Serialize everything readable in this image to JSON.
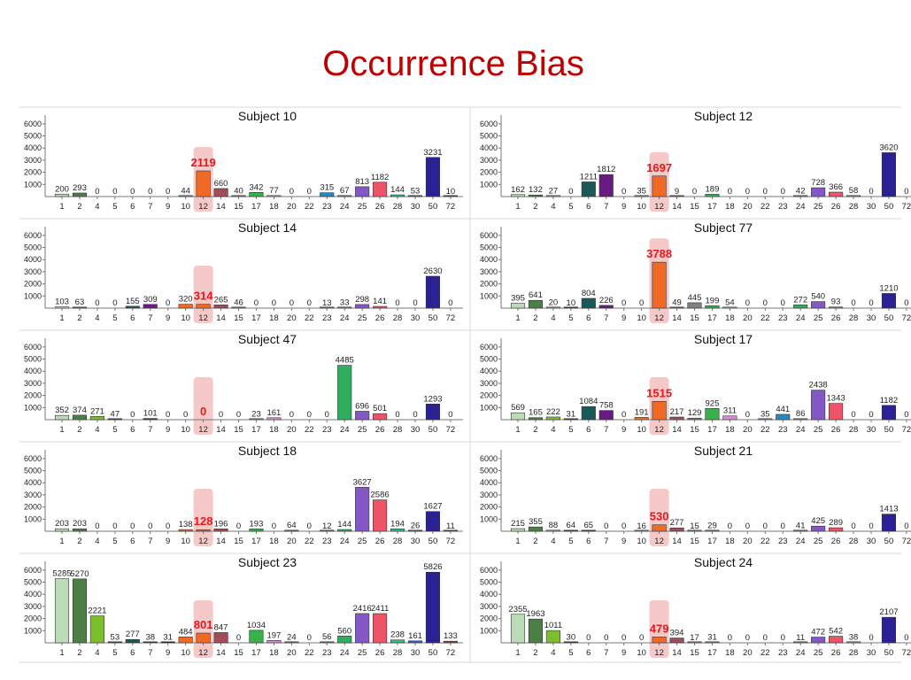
{
  "slide_title": "Occurrence Bias",
  "colors": {
    "title": "#c00000",
    "highlight_band": "#f6c9c9",
    "highlight_value": "#e8171c",
    "bars": {
      "1": "#bcdcb6",
      "2": "#4c7f46",
      "4": "#7cbf2c",
      "5": "#264f49",
      "6": "#195a59",
      "7": "#6a1a83",
      "9": "#222222",
      "10": "#f06a26",
      "12": "#f06a26",
      "14": "#a34b56",
      "15": "#7f7f7f",
      "17": "#39b04a",
      "18": "#cf8fcf",
      "20": "#7f5aa8",
      "22": "#8c7aa8",
      "23": "#2f86b9",
      "24": "#2fae5e",
      "25": "#8457c6",
      "26": "#ee5368",
      "28": "#2bbf8a",
      "30": "#3b5fbd",
      "50": "#2a2194",
      "72": "#8a4040"
    }
  },
  "chart_data": [
    {
      "type": "bar",
      "title": "Subject 10",
      "categories": [
        "1",
        "2",
        "4",
        "5",
        "6",
        "7",
        "9",
        "10",
        "12",
        "14",
        "15",
        "17",
        "18",
        "20",
        "22",
        "23",
        "24",
        "25",
        "26",
        "28",
        "30",
        "50",
        "72"
      ],
      "values": [
        200,
        293,
        0,
        0,
        0,
        0,
        0,
        44,
        2119,
        660,
        40,
        342,
        77,
        0,
        0,
        315,
        67,
        813,
        1182,
        144,
        53,
        3231,
        10
      ],
      "highlight_category": "12",
      "yticks": [
        1000,
        2000,
        3000,
        4000,
        5000,
        6000
      ],
      "ylim": [
        0,
        6500
      ]
    },
    {
      "type": "bar",
      "title": "Subject 12",
      "categories": [
        "1",
        "2",
        "4",
        "5",
        "6",
        "7",
        "9",
        "10",
        "12",
        "14",
        "15",
        "17",
        "18",
        "20",
        "22",
        "23",
        "24",
        "25",
        "26",
        "28",
        "30",
        "50",
        "72"
      ],
      "values": [
        162,
        132,
        27,
        0,
        1211,
        1812,
        0,
        35,
        1697,
        9,
        0,
        189,
        0,
        0,
        0,
        0,
        42,
        728,
        366,
        58,
        0,
        3620,
        0
      ],
      "highlight_category": "12",
      "yticks": [
        1000,
        2000,
        3000,
        4000,
        5000,
        6000
      ],
      "ylim": [
        0,
        6500
      ]
    },
    {
      "type": "bar",
      "title": "Subject 14",
      "categories": [
        "1",
        "2",
        "4",
        "5",
        "6",
        "7",
        "9",
        "10",
        "12",
        "14",
        "15",
        "17",
        "18",
        "20",
        "22",
        "23",
        "24",
        "25",
        "26",
        "28",
        "30",
        "50",
        "72"
      ],
      "values": [
        103,
        63,
        0,
        0,
        155,
        309,
        0,
        320,
        314,
        265,
        46,
        0,
        0,
        0,
        0,
        13,
        33,
        298,
        141,
        0,
        0,
        2630,
        0
      ],
      "highlight_category": "12",
      "yticks": [
        1000,
        2000,
        3000,
        4000,
        5000,
        6000
      ],
      "ylim": [
        0,
        6500
      ]
    },
    {
      "type": "bar",
      "title": "Subject 77",
      "categories": [
        "1",
        "2",
        "4",
        "5",
        "6",
        "7",
        "9",
        "10",
        "12",
        "14",
        "15",
        "17",
        "18",
        "20",
        "22",
        "23",
        "24",
        "25",
        "26",
        "28",
        "30",
        "50",
        "72"
      ],
      "values": [
        395,
        641,
        20,
        10,
        804,
        226,
        0,
        0,
        3788,
        49,
        445,
        199,
        54,
        0,
        0,
        0,
        272,
        540,
        93,
        0,
        0,
        1210,
        0
      ],
      "highlight_category": "12",
      "yticks": [
        1000,
        2000,
        3000,
        4000,
        5000,
        6000
      ],
      "ylim": [
        0,
        6500
      ]
    },
    {
      "type": "bar",
      "title": "Subject 47",
      "categories": [
        "1",
        "2",
        "4",
        "5",
        "6",
        "7",
        "9",
        "10",
        "12",
        "14",
        "15",
        "17",
        "18",
        "20",
        "22",
        "23",
        "24",
        "25",
        "26",
        "28",
        "30",
        "50",
        "72"
      ],
      "values": [
        352,
        374,
        271,
        47,
        0,
        101,
        0,
        0,
        0,
        0,
        0,
        23,
        161,
        0,
        0,
        0,
        4485,
        696,
        501,
        0,
        0,
        1293,
        0
      ],
      "highlight_category": "12",
      "yticks": [
        1000,
        2000,
        3000,
        4000,
        5000,
        6000
      ],
      "ylim": [
        0,
        6500
      ]
    },
    {
      "type": "bar",
      "title": "Subject 17",
      "categories": [
        "1",
        "2",
        "4",
        "5",
        "6",
        "7",
        "9",
        "10",
        "12",
        "14",
        "15",
        "17",
        "18",
        "20",
        "22",
        "23",
        "24",
        "25",
        "26",
        "28",
        "30",
        "50",
        "72"
      ],
      "values": [
        569,
        165,
        222,
        31,
        1084,
        758,
        0,
        191,
        1515,
        217,
        129,
        925,
        311,
        0,
        35,
        441,
        86,
        2438,
        1343,
        0,
        0,
        1182,
        0
      ],
      "highlight_category": "12",
      "yticks": [
        1000,
        2000,
        3000,
        4000,
        5000,
        6000
      ],
      "ylim": [
        0,
        6500
      ]
    },
    {
      "type": "bar",
      "title": "Subject 18",
      "categories": [
        "1",
        "2",
        "4",
        "5",
        "6",
        "7",
        "9",
        "10",
        "12",
        "14",
        "15",
        "17",
        "18",
        "20",
        "22",
        "23",
        "24",
        "25",
        "26",
        "28",
        "30",
        "50",
        "72"
      ],
      "values": [
        203,
        203,
        0,
        0,
        0,
        0,
        0,
        138,
        128,
        196,
        0,
        193,
        0,
        64,
        0,
        12,
        144,
        3627,
        2586,
        194,
        26,
        1627,
        11
      ],
      "highlight_category": "12",
      "yticks": [
        1000,
        2000,
        3000,
        4000,
        5000,
        6000
      ],
      "ylim": [
        0,
        6500
      ]
    },
    {
      "type": "bar",
      "title": "Subject 21",
      "categories": [
        "1",
        "2",
        "4",
        "5",
        "6",
        "7",
        "9",
        "10",
        "12",
        "14",
        "15",
        "17",
        "18",
        "20",
        "22",
        "23",
        "24",
        "25",
        "26",
        "28",
        "30",
        "50",
        "72"
      ],
      "values": [
        215,
        355,
        88,
        64,
        65,
        0,
        0,
        16,
        530,
        277,
        15,
        29,
        0,
        0,
        0,
        0,
        41,
        425,
        289,
        0,
        0,
        1413,
        0
      ],
      "highlight_category": "12",
      "yticks": [
        1000,
        2000,
        3000,
        4000,
        5000,
        6000
      ],
      "ylim": [
        0,
        6500
      ]
    },
    {
      "type": "bar",
      "title": "Subject 23",
      "categories": [
        "1",
        "2",
        "4",
        "5",
        "6",
        "7",
        "9",
        "10",
        "12",
        "14",
        "15",
        "17",
        "18",
        "20",
        "22",
        "23",
        "24",
        "25",
        "26",
        "28",
        "30",
        "50",
        "72"
      ],
      "values": [
        5285,
        5270,
        2221,
        53,
        277,
        38,
        31,
        484,
        801,
        847,
        0,
        1034,
        197,
        24,
        0,
        56,
        560,
        2416,
        2411,
        238,
        161,
        5826,
        133
      ],
      "highlight_category": "12",
      "yticks": [
        1000,
        2000,
        3000,
        4000,
        5000,
        6000
      ],
      "ylim": [
        0,
        6500
      ]
    },
    {
      "type": "bar",
      "title": "Subject 24",
      "categories": [
        "1",
        "2",
        "4",
        "5",
        "6",
        "7",
        "9",
        "10",
        "12",
        "14",
        "15",
        "17",
        "18",
        "20",
        "22",
        "23",
        "24",
        "25",
        "26",
        "28",
        "30",
        "50",
        "72"
      ],
      "values": [
        2355,
        1963,
        1011,
        30,
        0,
        0,
        0,
        0,
        479,
        394,
        17,
        31,
        0,
        0,
        0,
        0,
        11,
        472,
        542,
        38,
        0,
        2107,
        0
      ],
      "highlight_category": "12",
      "yticks": [
        1000,
        2000,
        3000,
        4000,
        5000,
        6000
      ],
      "ylim": [
        0,
        6500
      ]
    }
  ]
}
